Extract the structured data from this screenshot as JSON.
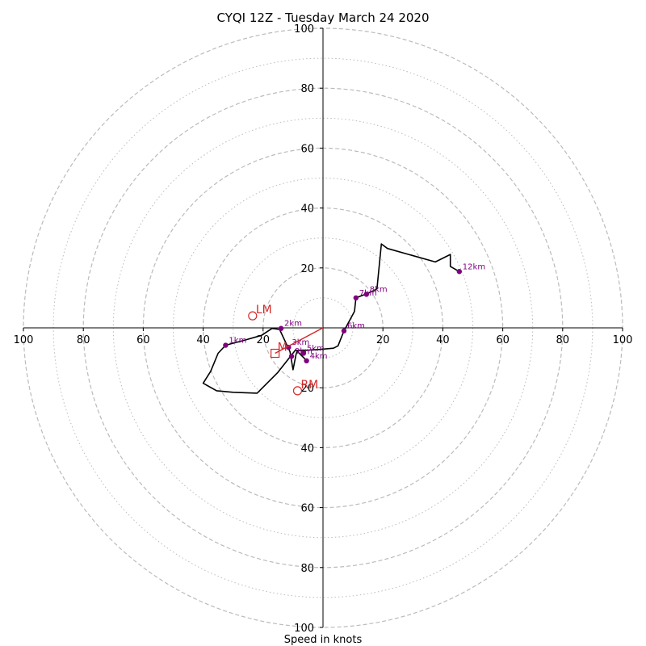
{
  "chart_data": {
    "type": "hodograph",
    "title": "CYQI 12Z - Tuesday March 24 2020",
    "xlabel": "Speed in knots",
    "xlim": [
      -100,
      100
    ],
    "ylim": [
      -100,
      100
    ],
    "grid": true,
    "rings_dashed": [
      20,
      40,
      60,
      80,
      100
    ],
    "rings_dotted": [
      10,
      30,
      50,
      70,
      90
    ],
    "x_tick_labels": [
      "100",
      "80",
      "60",
      "40",
      "20",
      "20",
      "40",
      "60",
      "80",
      "100"
    ],
    "x_tick_values": [
      -100,
      -80,
      -60,
      -40,
      -20,
      20,
      40,
      60,
      80,
      100
    ],
    "y_tick_labels": [
      "100",
      "80",
      "60",
      "40",
      "20",
      "20",
      "40",
      "60",
      "80",
      "100"
    ],
    "y_tick_values": [
      100,
      80,
      60,
      40,
      20,
      -20,
      -40,
      -60,
      -80,
      -100
    ],
    "hodograph_line": [
      [
        -5.2,
        -11.2
      ],
      [
        -9.1,
        -7.3
      ],
      [
        -15.1,
        -14.9
      ],
      [
        -22.0,
        -21.8
      ],
      [
        -30.0,
        -21.5
      ],
      [
        -35.5,
        -21.0
      ],
      [
        -40.0,
        -18.5
      ],
      [
        -37.5,
        -14.5
      ],
      [
        -35.0,
        -8.5
      ],
      [
        -32.5,
        -5.8
      ],
      [
        -26.5,
        -4.2
      ],
      [
        -20.5,
        -2.5
      ],
      [
        -17.0,
        -0.2
      ],
      [
        -14.5,
        -0.5
      ],
      [
        -11.0,
        -8.0
      ],
      [
        -10.0,
        -14.0
      ],
      [
        -9.0,
        -8.9
      ],
      [
        -8.5,
        -7.5
      ],
      [
        -5.5,
        -7.5
      ],
      [
        -1.0,
        -7.2
      ],
      [
        3.5,
        -6.8
      ],
      [
        5.0,
        -6.0
      ],
      [
        7.0,
        -1.0
      ],
      [
        10.5,
        5.5
      ],
      [
        11.0,
        10.0
      ],
      [
        15.0,
        11.5
      ],
      [
        18.0,
        13.0
      ],
      [
        19.5,
        28.0
      ],
      [
        21.5,
        26.5
      ],
      [
        37.5,
        22.0
      ],
      [
        42.5,
        24.5
      ],
      [
        42.5,
        20.5
      ],
      [
        45.5,
        18.8
      ]
    ],
    "height_markers": [
      {
        "label": "1km",
        "u": -32.5,
        "v": -5.8
      },
      {
        "label": "2km",
        "u": -14.0,
        "v": -0.2
      },
      {
        "label": "3km",
        "u": -11.5,
        "v": -6.5
      },
      {
        "label": "4km",
        "u": -5.5,
        "v": -11.0
      },
      {
        "label": "5km",
        "u": -6.5,
        "v": -8.5
      },
      {
        "label": "6km",
        "u": 7.0,
        "v": -1.0
      },
      {
        "label": "7km",
        "u": 11.0,
        "v": 10.0
      },
      {
        "label": "8km",
        "u": 14.5,
        "v": 11.2
      },
      {
        "label": "9km",
        "u": -10.5,
        "v": -9.5
      },
      {
        "label": "12km",
        "u": 45.5,
        "v": 18.8
      }
    ],
    "storm_motion": {
      "u": -16.0,
      "v": -8.5
    },
    "bunkers_left": {
      "label": "LM",
      "u": -23.5,
      "v": 4.0
    },
    "bunkers_right": {
      "label": "RM",
      "u": -8.5,
      "v": -21.0
    },
    "mean_wind_label": "M",
    "colors": {
      "hodograph": "#000000",
      "markers": "#800080",
      "motion": "#d62728",
      "grid": "#bbbbbb",
      "axes": "#000000"
    }
  }
}
